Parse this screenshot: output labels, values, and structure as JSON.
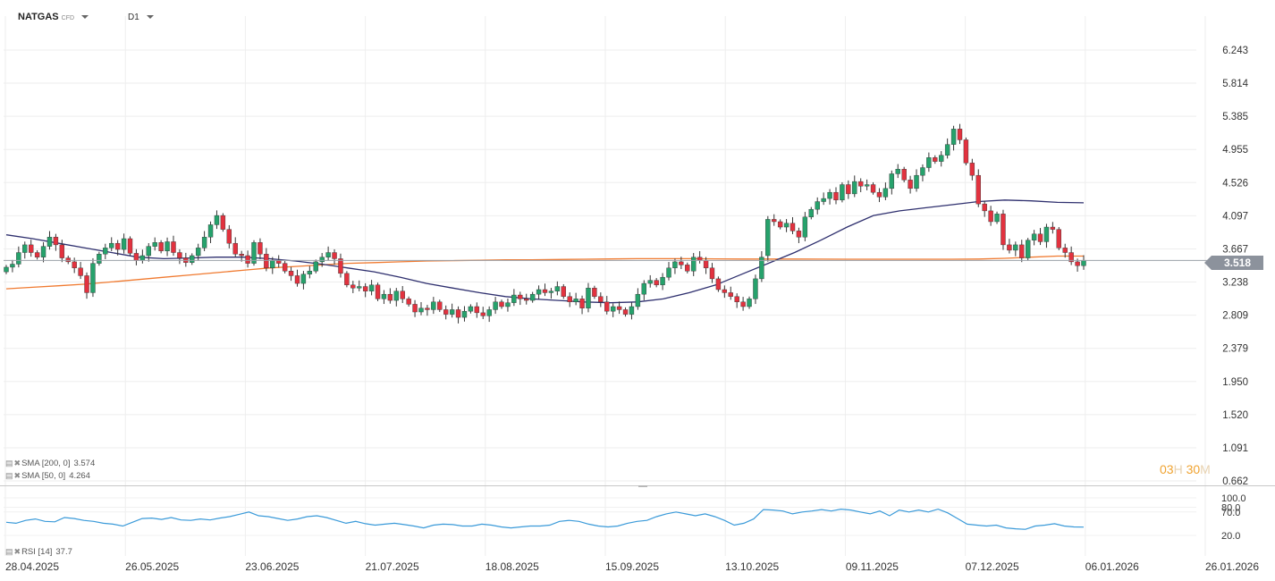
{
  "header": {
    "symbol": "NATGAS",
    "symbol_type": "CFD",
    "timeframe": "D1"
  },
  "indicators": {
    "sma200_label": "SMA [200, 0]",
    "sma200_value": "3.574",
    "sma50_label": "SMA [50, 0]",
    "sma50_value": "4.264",
    "rsi_label": "RSI [14]",
    "rsi_value": "37.7"
  },
  "timer": {
    "hours": "03",
    "hours_unit": "H",
    "minutes": "30",
    "minutes_unit": "M"
  },
  "current_price": "3.518",
  "colors": {
    "up": "#26a26c",
    "down": "#e2323f",
    "sma50": "#2e2f6e",
    "sma200": "#f07a30",
    "rsi": "#3a9ad9",
    "grid": "#eeeeee"
  },
  "chart_data": {
    "type": "candlestick",
    "title": "NATGAS",
    "timeframe": "D1",
    "price_axis_ticks": [
      "6.243",
      "5.814",
      "5.385",
      "4.955",
      "4.526",
      "4.097",
      "3.667",
      "3.238",
      "2.809",
      "2.379",
      "1.950",
      "1.520",
      "1.091",
      "0.662"
    ],
    "date_axis_ticks": [
      "28.04.2025",
      "26.05.2025",
      "23.06.2025",
      "21.07.2025",
      "18.08.2025",
      "15.09.2025",
      "13.10.2025",
      "09.11.2025",
      "07.12.2025",
      "06.01.2026",
      "26.01.2026"
    ],
    "ylim": [
      0.662,
      6.243
    ],
    "current_price": 3.518,
    "closes": [
      3.43,
      3.47,
      3.62,
      3.72,
      3.62,
      3.56,
      3.7,
      3.82,
      3.72,
      3.55,
      3.5,
      3.42,
      3.32,
      3.1,
      3.48,
      3.6,
      3.68,
      3.74,
      3.66,
      3.8,
      3.61,
      3.52,
      3.58,
      3.7,
      3.75,
      3.64,
      3.76,
      3.62,
      3.55,
      3.49,
      3.58,
      3.68,
      3.82,
      3.98,
      4.1,
      3.92,
      3.74,
      3.6,
      3.58,
      3.48,
      3.75,
      3.6,
      3.42,
      3.52,
      3.48,
      3.38,
      3.32,
      3.22,
      3.34,
      3.38,
      3.5,
      3.56,
      3.62,
      3.54,
      3.35,
      3.2,
      3.16,
      3.18,
      3.12,
      3.2,
      3.02,
      3.08,
      3.0,
      3.12,
      3.02,
      2.95,
      2.85,
      2.9,
      2.88,
      2.98,
      2.88,
      2.82,
      2.88,
      2.78,
      2.86,
      2.92,
      2.84,
      2.8,
      2.88,
      2.98,
      2.92,
      2.97,
      3.07,
      3.02,
      3.0,
      3.08,
      3.14,
      3.1,
      3.12,
      3.18,
      3.05,
      2.98,
      3.02,
      2.9,
      3.16,
      3.05,
      2.98,
      2.86,
      2.92,
      2.88,
      2.82,
      2.92,
      3.08,
      3.22,
      3.26,
      3.2,
      3.3,
      3.42,
      3.5,
      3.46,
      3.38,
      3.56,
      3.52,
      3.42,
      3.28,
      3.14,
      3.1,
      3.05,
      2.98,
      2.92,
      3.02,
      3.28,
      3.56,
      4.05,
      4.02,
      3.95,
      4.0,
      3.9,
      3.82,
      4.08,
      4.18,
      4.28,
      4.32,
      4.4,
      4.3,
      4.5,
      4.38,
      4.54,
      4.48,
      4.5,
      4.4,
      4.34,
      4.45,
      4.64,
      4.7,
      4.56,
      4.45,
      4.62,
      4.72,
      4.85,
      4.8,
      4.88,
      5.02,
      5.22,
      5.08,
      4.78,
      4.62,
      4.25,
      4.16,
      4.02,
      4.12,
      3.72,
      3.65,
      3.72,
      3.55,
      3.78,
      3.86,
      3.76,
      3.95,
      3.92,
      3.68,
      3.62,
      3.5,
      3.45,
      3.52
    ],
    "series": [
      {
        "name": "SMA [200, 0]",
        "value": 3.574,
        "values": [
          3.15,
          3.17,
          3.19,
          3.21,
          3.24,
          3.27,
          3.3,
          3.33,
          3.36,
          3.39,
          3.42,
          3.44,
          3.46,
          3.48,
          3.49,
          3.5,
          3.51,
          3.515,
          3.52,
          3.525,
          3.527,
          3.53,
          3.534,
          3.537,
          3.54,
          3.54,
          3.54,
          3.538,
          3.536,
          3.536,
          3.536,
          3.535,
          3.534,
          3.533,
          3.533,
          3.533,
          3.534,
          3.536,
          3.545,
          3.56,
          3.574,
          3.574
        ]
      },
      {
        "name": "SMA [50, 0]",
        "value": 4.264,
        "values": [
          3.85,
          3.8,
          3.74,
          3.68,
          3.62,
          3.56,
          3.54,
          3.55,
          3.56,
          3.56,
          3.54,
          3.51,
          3.47,
          3.42,
          3.37,
          3.3,
          3.22,
          3.16,
          3.1,
          3.05,
          3.02,
          3.0,
          2.98,
          2.97,
          2.98,
          3.02,
          3.1,
          3.2,
          3.34,
          3.48,
          3.62,
          3.78,
          3.95,
          4.1,
          4.16,
          4.2,
          4.24,
          4.28,
          4.3,
          4.29,
          4.27,
          4.264
        ]
      }
    ],
    "rsi": {
      "name": "RSI [14]",
      "value": 37.7,
      "ticks": [
        100.0,
        80.0,
        70.0,
        20.0
      ],
      "ylim": [
        0,
        100
      ],
      "values": [
        48,
        46,
        52,
        55,
        50,
        49,
        58,
        56,
        52,
        50,
        46,
        44,
        40,
        48,
        56,
        57,
        54,
        58,
        53,
        52,
        55,
        53,
        57,
        60,
        65,
        70,
        62,
        60,
        56,
        52,
        55,
        60,
        62,
        58,
        52,
        46,
        50,
        45,
        42,
        44,
        46,
        43,
        40,
        36,
        42,
        44,
        43,
        40,
        40,
        44,
        42,
        38,
        36,
        38,
        40,
        40,
        42,
        50,
        52,
        50,
        44,
        40,
        38,
        40,
        46,
        50,
        52,
        60,
        66,
        70,
        66,
        62,
        66,
        60,
        52,
        42,
        46,
        55,
        75,
        74,
        72,
        66,
        70,
        72,
        75,
        72,
        76,
        74,
        70,
        66,
        72,
        62,
        74,
        70,
        74,
        70,
        76,
        68,
        56,
        44,
        42,
        40,
        42,
        36,
        34,
        33,
        40,
        42,
        45,
        40,
        38,
        37.7
      ]
    }
  }
}
